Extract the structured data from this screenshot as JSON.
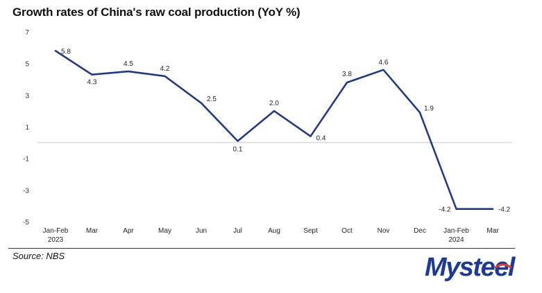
{
  "title": "Growth rates of China's raw coal production (YoY %)",
  "source": "Source: NBS",
  "logo": {
    "text": "Mysteel",
    "primary_color": "#1d3b96",
    "accent_color": "#e53a2b"
  },
  "chart_data": {
    "type": "line",
    "title": "Growth rates of China's raw coal production (YoY %)",
    "categories": [
      "Jan-Feb",
      "Mar",
      "Apr",
      "May",
      "Jun",
      "Jul",
      "Aug",
      "Sept",
      "Oct",
      "Nov",
      "Dec",
      "Jan-Feb",
      "Mar"
    ],
    "year_labels": [
      {
        "index": 0,
        "label": "2023"
      },
      {
        "index": 11,
        "label": "2024"
      }
    ],
    "series": [
      {
        "values": [
          5.8,
          4.3,
          4.5,
          4.2,
          2.5,
          0.1,
          2.0,
          0.4,
          3.8,
          4.6,
          1.9,
          -4.2,
          -4.2
        ],
        "labels": [
          "5.8",
          "4.3",
          "4.5",
          "4.2",
          "2.5",
          "0.1",
          "2.0",
          "0.4",
          "3.8",
          "4.6",
          "1.9",
          "-4.2",
          "-4.2"
        ],
        "color": "#1f3a8a"
      }
    ],
    "ylim": [
      -5,
      7
    ],
    "yticks": [
      7,
      5,
      3,
      1,
      -1,
      -3,
      -5
    ],
    "grid": false,
    "legend": "none"
  }
}
